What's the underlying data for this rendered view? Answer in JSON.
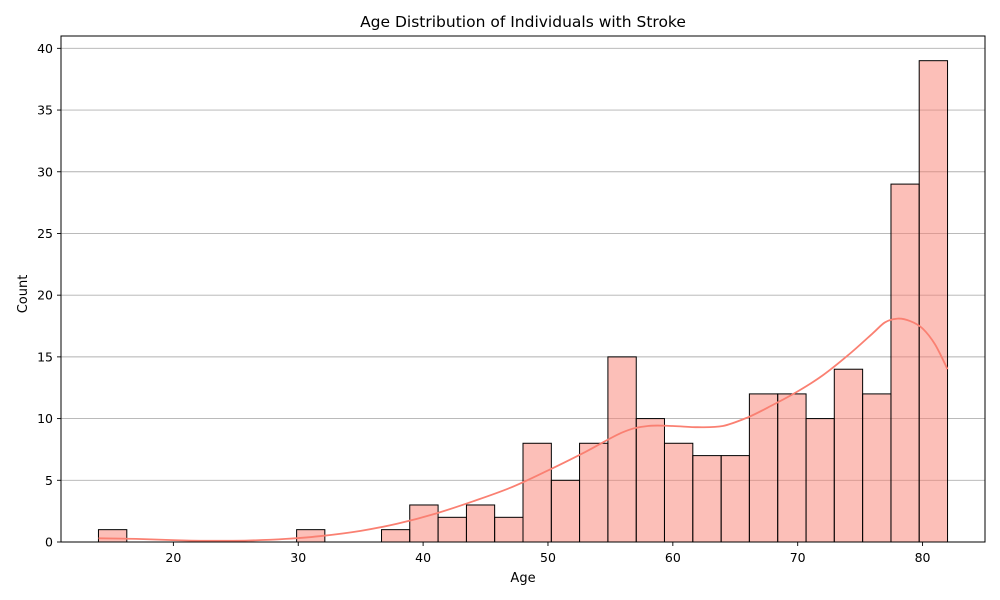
{
  "chart_data": {
    "type": "bar",
    "title": "Age Distribution of Individuals with Stroke",
    "xlabel": "Age",
    "ylabel": "Count",
    "xlim": [
      11,
      85
    ],
    "ylim": [
      0,
      41
    ],
    "xticks": [
      20,
      30,
      40,
      50,
      60,
      70,
      80
    ],
    "yticks": [
      0,
      5,
      10,
      15,
      20,
      25,
      30,
      35,
      40
    ],
    "grid": "y",
    "bar_color": "#fa8072",
    "bar_edge_color": "#000000",
    "kde_color": "#fa8072",
    "bins": [
      {
        "x0": 14.0,
        "x1": 16.27,
        "value": 1
      },
      {
        "x0": 16.27,
        "x1": 18.53,
        "value": 0
      },
      {
        "x0": 18.53,
        "x1": 20.8,
        "value": 0
      },
      {
        "x0": 20.8,
        "x1": 23.07,
        "value": 0
      },
      {
        "x0": 23.07,
        "x1": 25.33,
        "value": 0
      },
      {
        "x0": 25.33,
        "x1": 27.6,
        "value": 0
      },
      {
        "x0": 27.6,
        "x1": 29.87,
        "value": 0
      },
      {
        "x0": 29.87,
        "x1": 32.13,
        "value": 1
      },
      {
        "x0": 32.13,
        "x1": 34.4,
        "value": 0
      },
      {
        "x0": 34.4,
        "x1": 36.67,
        "value": 0
      },
      {
        "x0": 36.67,
        "x1": 38.93,
        "value": 1
      },
      {
        "x0": 38.93,
        "x1": 41.2,
        "value": 3
      },
      {
        "x0": 41.2,
        "x1": 43.47,
        "value": 2
      },
      {
        "x0": 43.47,
        "x1": 45.73,
        "value": 3
      },
      {
        "x0": 45.73,
        "x1": 48.0,
        "value": 2
      },
      {
        "x0": 48.0,
        "x1": 50.27,
        "value": 8
      },
      {
        "x0": 50.27,
        "x1": 52.53,
        "value": 5
      },
      {
        "x0": 52.53,
        "x1": 54.8,
        "value": 8
      },
      {
        "x0": 54.8,
        "x1": 57.07,
        "value": 15
      },
      {
        "x0": 57.07,
        "x1": 59.33,
        "value": 10
      },
      {
        "x0": 59.33,
        "x1": 61.6,
        "value": 8
      },
      {
        "x0": 61.6,
        "x1": 63.87,
        "value": 7
      },
      {
        "x0": 63.87,
        "x1": 66.13,
        "value": 7
      },
      {
        "x0": 66.13,
        "x1": 68.4,
        "value": 12
      },
      {
        "x0": 68.4,
        "x1": 70.67,
        "value": 12
      },
      {
        "x0": 70.67,
        "x1": 72.93,
        "value": 10
      },
      {
        "x0": 72.93,
        "x1": 75.2,
        "value": 14
      },
      {
        "x0": 75.2,
        "x1": 77.47,
        "value": 12
      },
      {
        "x0": 77.47,
        "x1": 79.73,
        "value": 29
      },
      {
        "x0": 79.73,
        "x1": 82.0,
        "value": 39
      }
    ],
    "kde": {
      "x": [
        14,
        17,
        20,
        23,
        26,
        29,
        32,
        35,
        38,
        41,
        44,
        47,
        50,
        53,
        56,
        58,
        60,
        62,
        64,
        66,
        68,
        70,
        72,
        74,
        76,
        77,
        78,
        79,
        80,
        81,
        82
      ],
      "y": [
        0.3,
        0.25,
        0.15,
        0.1,
        0.12,
        0.25,
        0.5,
        0.9,
        1.5,
        2.3,
        3.3,
        4.4,
        5.8,
        7.3,
        8.9,
        9.4,
        9.4,
        9.3,
        9.4,
        10.1,
        11.1,
        12.2,
        13.5,
        15.1,
        16.9,
        17.8,
        18.1,
        17.9,
        17.3,
        16.0,
        14.0
      ]
    }
  }
}
